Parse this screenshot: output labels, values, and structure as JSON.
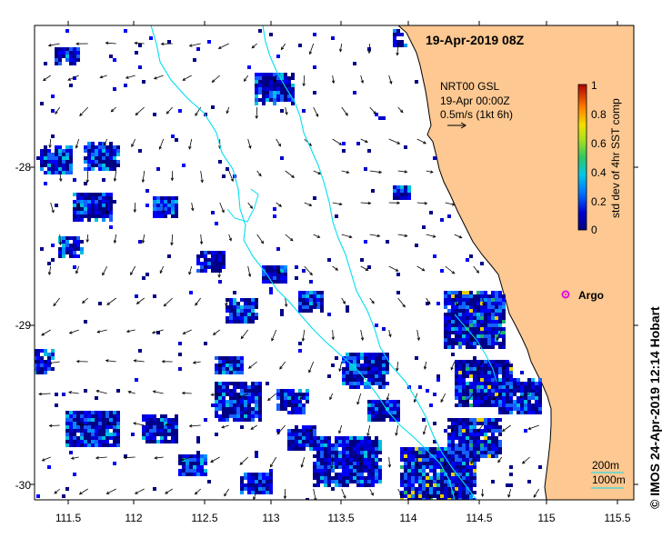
{
  "map": {
    "title": "19-Apr-2019 08Z",
    "product": "NRT00 GSL",
    "product_time": "19-Apr 00:00Z",
    "vector_scale": "0.5m/s (1kt 6h)",
    "credit": "© IMOS 24-Apr-2019 12:14 Hobart",
    "lon_ticks": [
      "111.5",
      "112",
      "112.5",
      "113",
      "113.5",
      "114",
      "114.5",
      "115",
      "115.5"
    ],
    "lat_ticks": [
      "-28",
      "-29",
      "-30"
    ],
    "lon_range": [
      111.3,
      115.65
    ],
    "lat_range": [
      -27.1,
      -30.1
    ],
    "colorbar": {
      "label": "std dev of 4hr SST comp",
      "ticks": [
        "0",
        "0.2",
        "0.4",
        "0.6",
        "0.8",
        "1"
      ],
      "range": [
        0,
        1
      ]
    },
    "argo": {
      "label": "Argo",
      "lon": 115.12,
      "lat": -28.9
    },
    "isobaths": {
      "labels": [
        "200m",
        "1000m"
      ],
      "color": "#00e0f0"
    },
    "land_color": "#fdc891"
  }
}
